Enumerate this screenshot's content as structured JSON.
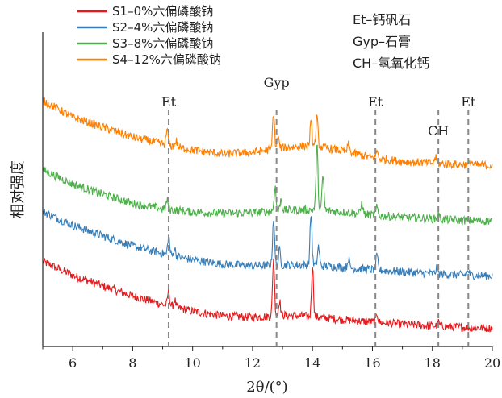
{
  "chart_data": {
    "type": "line",
    "title": "",
    "xlabel": "2θ/(°)",
    "ylabel": "相对强度",
    "xlim": [
      5,
      20
    ],
    "x_ticks": [
      6,
      8,
      10,
      12,
      14,
      16,
      18,
      20
    ],
    "y_ticks_shown": false,
    "legend_placement": "top-left",
    "grid": false,
    "series": [
      {
        "name": "S1–0%六偏磷酸钠",
        "color": "#e41a1c",
        "offset": 0,
        "baseline": [
          [
            5,
            0.92
          ],
          [
            6,
            0.74
          ],
          [
            7,
            0.6
          ],
          [
            8,
            0.47
          ],
          [
            9,
            0.36
          ],
          [
            10,
            0.27
          ],
          [
            11,
            0.21
          ],
          [
            12,
            0.19
          ],
          [
            13,
            0.22
          ],
          [
            14,
            0.2
          ],
          [
            15,
            0.16
          ],
          [
            16,
            0.13
          ],
          [
            17,
            0.1
          ],
          [
            18,
            0.08
          ],
          [
            19,
            0.06
          ],
          [
            20,
            0.05
          ]
        ],
        "peaks": [
          {
            "x": 9.2,
            "h": 0.2
          },
          {
            "x": 9.4,
            "h": 0.1
          },
          {
            "x": 12.7,
            "h": 0.75
          },
          {
            "x": 12.9,
            "h": 0.2
          },
          {
            "x": 14.0,
            "h": 0.68
          },
          {
            "x": 16.15,
            "h": 0.12
          },
          {
            "x": 18.2,
            "h": 0.05
          }
        ]
      },
      {
        "name": "S2–4%六偏磷酸钠",
        "color": "#377eb8",
        "offset": 1,
        "baseline": [
          [
            5,
            0.9
          ],
          [
            6,
            0.72
          ],
          [
            7,
            0.58
          ],
          [
            8,
            0.45
          ],
          [
            9,
            0.35
          ],
          [
            10,
            0.27
          ],
          [
            11,
            0.21
          ],
          [
            12,
            0.19
          ],
          [
            13,
            0.2
          ],
          [
            14,
            0.2
          ],
          [
            15,
            0.17
          ],
          [
            16,
            0.14
          ],
          [
            17,
            0.11
          ],
          [
            18,
            0.09
          ],
          [
            19,
            0.07
          ],
          [
            20,
            0.06
          ]
        ],
        "peaks": [
          {
            "x": 9.2,
            "h": 0.25
          },
          {
            "x": 9.4,
            "h": 0.1
          },
          {
            "x": 12.7,
            "h": 0.62
          },
          {
            "x": 12.9,
            "h": 0.2
          },
          {
            "x": 13.95,
            "h": 0.68
          },
          {
            "x": 14.2,
            "h": 0.25
          },
          {
            "x": 15.2,
            "h": 0.12
          },
          {
            "x": 16.15,
            "h": 0.18
          },
          {
            "x": 18.15,
            "h": 0.08
          },
          {
            "x": 19.2,
            "h": 0.06
          }
        ]
      },
      {
        "name": "S3–8%六偏磷酸钠",
        "color": "#4daf4a",
        "offset": 2,
        "baseline": [
          [
            5,
            0.75
          ],
          [
            6,
            0.56
          ],
          [
            7,
            0.43
          ],
          [
            8,
            0.31
          ],
          [
            9,
            0.24
          ],
          [
            10,
            0.2
          ],
          [
            11,
            0.18
          ],
          [
            12,
            0.19
          ],
          [
            13,
            0.22
          ],
          [
            14,
            0.23
          ],
          [
            15,
            0.2
          ],
          [
            16,
            0.16
          ],
          [
            17,
            0.13
          ],
          [
            18,
            0.11
          ],
          [
            19,
            0.09
          ],
          [
            20,
            0.08
          ]
        ],
        "peaks": [
          {
            "x": 9.15,
            "h": 0.12
          },
          {
            "x": 12.75,
            "h": 0.32
          },
          {
            "x": 12.95,
            "h": 0.15
          },
          {
            "x": 14.15,
            "h": 0.85
          },
          {
            "x": 14.35,
            "h": 0.45
          },
          {
            "x": 15.65,
            "h": 0.15
          },
          {
            "x": 16.15,
            "h": 0.1
          },
          {
            "x": 18.2,
            "h": 0.07
          }
        ]
      },
      {
        "name": "S4–12%六偏磷酸钠",
        "color": "#ff7f00",
        "offset": 3,
        "baseline": [
          [
            5,
            0.92
          ],
          [
            6,
            0.7
          ],
          [
            7,
            0.57
          ],
          [
            8,
            0.44
          ],
          [
            9,
            0.35
          ],
          [
            10,
            0.27
          ],
          [
            11,
            0.22
          ],
          [
            12,
            0.24
          ],
          [
            13,
            0.3
          ],
          [
            14,
            0.33
          ],
          [
            15,
            0.26
          ],
          [
            16,
            0.17
          ],
          [
            17,
            0.12
          ],
          [
            18,
            0.1
          ],
          [
            19,
            0.08
          ],
          [
            20,
            0.07
          ]
        ],
        "peaks": [
          {
            "x": 9.15,
            "h": 0.2
          },
          {
            "x": 9.45,
            "h": 0.08
          },
          {
            "x": 12.7,
            "h": 0.48
          },
          {
            "x": 12.85,
            "h": 0.15
          },
          {
            "x": 13.95,
            "h": 0.3
          },
          {
            "x": 14.15,
            "h": 0.38
          },
          {
            "x": 15.2,
            "h": 0.1
          },
          {
            "x": 16.15,
            "h": 0.1
          },
          {
            "x": 18.1,
            "h": 0.08
          },
          {
            "x": 19.3,
            "h": 0.05
          }
        ]
      }
    ],
    "reference_lines": [
      {
        "x": 9.2,
        "label": "Et"
      },
      {
        "x": 12.8,
        "label": "Gyp"
      },
      {
        "x": 16.1,
        "label": "Et"
      },
      {
        "x": 18.2,
        "label": "CH"
      },
      {
        "x": 19.2,
        "label": "Et"
      }
    ],
    "phase_legend": [
      "Et–钙矾石",
      "Gyp–石膏",
      "CH–氢氧化钙"
    ]
  }
}
